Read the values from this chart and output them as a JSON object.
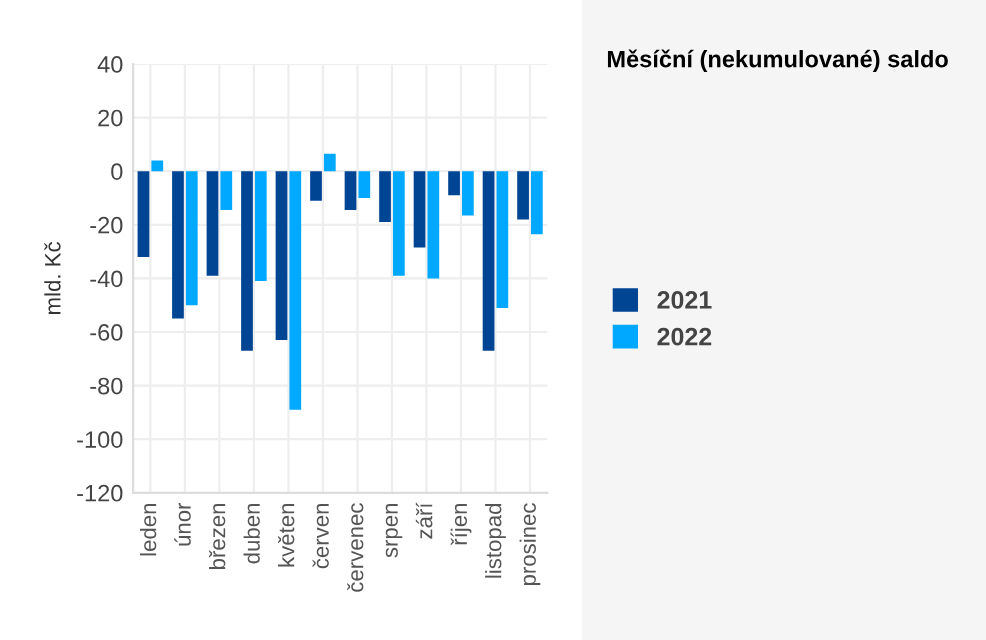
{
  "chart_data": {
    "type": "bar",
    "title": "Měsíční (nekumulované) saldo",
    "ylabel": "mld. Kč",
    "categories": [
      "leden",
      "únor",
      "březen",
      "duben",
      "květen",
      "červen",
      "červenec",
      "srpen",
      "září",
      "říjen",
      "listopad",
      "prosinec"
    ],
    "series": [
      {
        "name": "2021",
        "color": "#004494",
        "values": [
          -32,
          -55,
          -39,
          -67,
          -63,
          -11,
          -14.5,
          -19,
          -28.5,
          -9,
          -67,
          -18
        ]
      },
      {
        "name": "2022",
        "color": "#00a8ff",
        "values": [
          4,
          -50,
          -14.5,
          -41,
          -89,
          6.5,
          -10,
          -39,
          -40,
          -16.5,
          -51,
          -23.5
        ]
      }
    ],
    "ylim": [
      -120,
      40
    ],
    "yticks": [
      -120,
      -100,
      -80,
      -60,
      -40,
      -20,
      0,
      20,
      40
    ],
    "grid": true,
    "legend": "right"
  }
}
